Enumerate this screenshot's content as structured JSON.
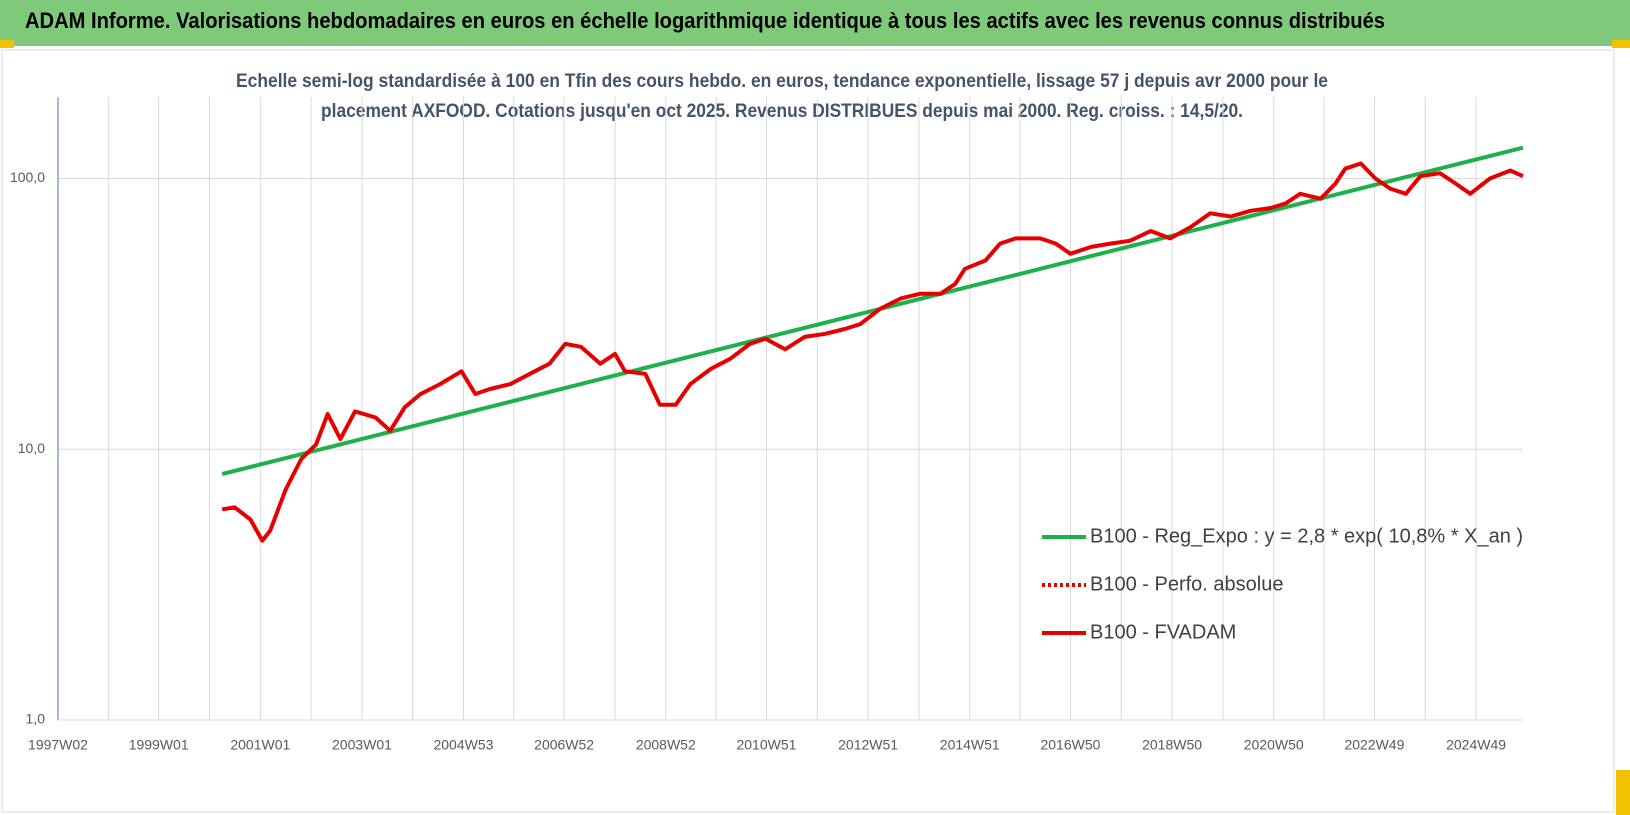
{
  "header": {
    "title": "ADAM Informe. Valorisations hebdomadaires en euros en échelle logarithmique identique à tous les actifs avec les revenus connus distribués"
  },
  "chart_data": {
    "type": "line",
    "subtitle": [
      "Echelle semi-log standardisée à 100 en Tfin des cours hebdo. en euros, tendance exponentielle, lissage 57 j depuis avr 2000 pour le",
      "placement AXFOOD. Cotations jusqu'en oct 2025. Revenus DISTRIBUES depuis mai 2000.  Reg. croiss. : 14,5/20."
    ],
    "log_scale": true,
    "grid": true,
    "legend_position": "right",
    "xlim": [
      "1997W02",
      "2025W45"
    ],
    "xticks": [
      "1997W02",
      "1999W01",
      "2001W01",
      "2003W01",
      "2004W53",
      "2006W52",
      "2008W52",
      "2010W51",
      "2012W51",
      "2014W51",
      "2016W50",
      "2018W50",
      "2020W50",
      "2022W49",
      "2024W49"
    ],
    "ylim": [
      1,
      200
    ],
    "yticks": [
      {
        "value": 1,
        "label": "1,0"
      },
      {
        "value": 10,
        "label": "10,0"
      },
      {
        "value": 100,
        "label": "100,0"
      }
    ],
    "series": [
      {
        "name": "B100 - Reg_Expo : y = 2,8 * exp( 10,8% *  X_an )",
        "color": "#1db04b",
        "dash": "solid",
        "x": [
          "2000W14",
          "2025W45"
        ],
        "values": [
          8.1,
          130
        ]
      },
      {
        "name": "B100 - Perfo. absolue",
        "color": "#e00000",
        "dash": "dotted"
      },
      {
        "name": "B100 - FVADAM",
        "color": "#e60000",
        "dash": "solid",
        "x": [
          "2000W14",
          "2000W27",
          "2000W43",
          "2001W03",
          "2001W11",
          "2001W27",
          "2001W43",
          "2002W06",
          "2002W18",
          "2002W31",
          "2002W46",
          "2003W15",
          "2003W30",
          "2003W45",
          "2004W09",
          "2004W29",
          "2004W51",
          "2005W13",
          "2005W28",
          "2005W49",
          "2006W17",
          "2006W37",
          "2007W01",
          "2007W17",
          "2007W37",
          "2007W52",
          "2008W10",
          "2008W31",
          "2008W46",
          "2009W10",
          "2009W25",
          "2009W46",
          "2010W14",
          "2010W34",
          "2010W50",
          "2011W18",
          "2011W38",
          "2012W07",
          "2012W27",
          "2012W43",
          "2013W11",
          "2013W32",
          "2013W52",
          "2014W21",
          "2014W36",
          "2014W46",
          "2015W15",
          "2015W30",
          "2015W46",
          "2016W19",
          "2016W35",
          "2016W50",
          "2017W19",
          "2017W39",
          "2018W07",
          "2018W28",
          "2018W48",
          "2019W17",
          "2019W37",
          "2020W06",
          "2020W26",
          "2020W47",
          "2021W10",
          "2021W25",
          "2021W46",
          "2022W09",
          "2022W19",
          "2022W35",
          "2022W50",
          "2023W13",
          "2023W29",
          "2023W44",
          "2024W12",
          "2024W28",
          "2024W43",
          "2025W11",
          "2025W32",
          "2025W45"
        ],
        "values": [
          6.0,
          6.1,
          5.5,
          4.6,
          5.0,
          7.1,
          9.2,
          10.4,
          13.5,
          10.9,
          13.8,
          13.1,
          11.7,
          14.3,
          16.0,
          17.4,
          19.4,
          16.0,
          16.7,
          17.4,
          19.0,
          20.7,
          24.5,
          23.9,
          20.7,
          22.5,
          19.4,
          19.0,
          14.6,
          14.6,
          17.4,
          19.8,
          21.6,
          24.5,
          25.6,
          23.4,
          26.0,
          26.7,
          27.8,
          29.0,
          33.0,
          36.0,
          37.5,
          37.5,
          40.8,
          46.4,
          49.8,
          57.5,
          60.1,
          60.1,
          57.5,
          52.7,
          55.9,
          57.5,
          58.9,
          64.0,
          60.1,
          66.2,
          74.4,
          72.4,
          76.0,
          77.8,
          80.9,
          87.8,
          84.2,
          95.8,
          108.7,
          113.6,
          100,
          91.8,
          87.8,
          102.1,
          104.6,
          95.8,
          87.8,
          100,
          107,
          102
        ]
      }
    ]
  }
}
